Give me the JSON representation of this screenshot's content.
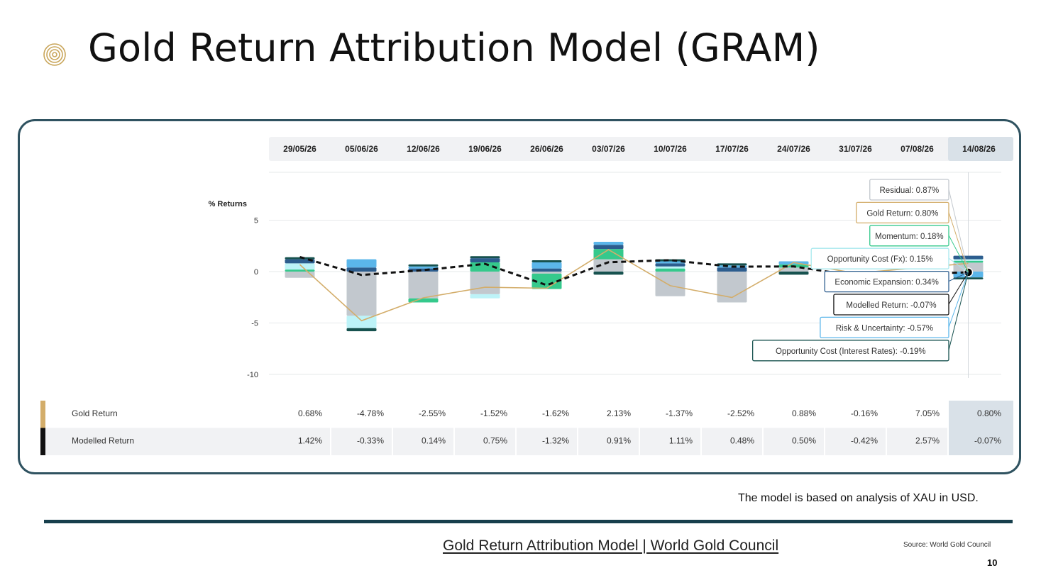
{
  "slide": {
    "title": "Gold Return Attribution Model (GRAM)",
    "note": "The model is based on analysis of XAU in USD.",
    "link_text": "Gold Return Attribution Model | World Gold Council",
    "source": "Source: World Gold Council",
    "page_number": "10",
    "colors": {
      "accent_gold": "#c9a65b",
      "dark_teal": "#173f4c",
      "panel_border": "#2f5260"
    },
    "icon": "concentric-circles-icon"
  },
  "chart_data": {
    "type": "bar",
    "stacked": true,
    "ylabel": "% Returns",
    "ylim": [
      -10,
      6
    ],
    "yticks": [
      5,
      0,
      -5,
      -10
    ],
    "grid": true,
    "categories": [
      "29/05/26",
      "05/06/26",
      "12/06/26",
      "19/06/26",
      "26/06/26",
      "03/07/26",
      "10/07/26",
      "17/07/26",
      "24/07/26",
      "31/07/26",
      "07/08/26",
      "14/08/26"
    ],
    "highlight_category": "14/08/26",
    "series": [
      {
        "name": "Residual",
        "type": "bar",
        "color": "#c2c8ce",
        "values": [
          -0.6,
          -4.3,
          -2.6,
          -2.2,
          -0.2,
          1.2,
          -2.4,
          -3.0,
          0.4,
          null,
          null,
          0.87
        ]
      },
      {
        "name": "Momentum",
        "type": "bar",
        "color": "#35c98c",
        "values": [
          0.2,
          0,
          -0.4,
          0.9,
          -1.5,
          1.0,
          0.3,
          0,
          0.3,
          null,
          null,
          0.18
        ]
      },
      {
        "name": "Opportunity Cost (Fx)",
        "type": "bar",
        "color": "#bdf3f8",
        "values": [
          0.6,
          -1.2,
          0,
          -0.4,
          0,
          0,
          0.2,
          0,
          0,
          null,
          null,
          0.15
        ]
      },
      {
        "name": "Economic Expansion",
        "type": "bar",
        "color": "#2c5d8e",
        "values": [
          0.4,
          0.4,
          0.3,
          0.4,
          0.3,
          0.4,
          0.3,
          0.4,
          0,
          null,
          null,
          0.34
        ]
      },
      {
        "name": "Risk & Uncertainty",
        "type": "bar",
        "color": "#5bb6ea",
        "values": [
          0,
          0.8,
          0.2,
          0,
          0.6,
          0.3,
          0.2,
          0.2,
          0.3,
          null,
          null,
          -0.57
        ]
      },
      {
        "name": "Opportunity Cost (Interest Rates)",
        "type": "bar",
        "color": "#17524f",
        "values": [
          0.2,
          -0.3,
          0.2,
          0.2,
          0.2,
          -0.3,
          0.2,
          0.2,
          -0.3,
          null,
          null,
          -0.19
        ]
      },
      {
        "name": "Gold Return",
        "type": "line",
        "color": "#d3ad6a",
        "values": [
          0.68,
          -4.78,
          -2.55,
          -1.52,
          -1.62,
          2.13,
          -1.37,
          -2.52,
          0.88,
          -0.16,
          7.05,
          0.8
        ]
      },
      {
        "name": "Modelled Return",
        "type": "line",
        "color": "#111111",
        "dashed": true,
        "values": [
          1.42,
          -0.33,
          0.14,
          0.75,
          -1.32,
          0.91,
          1.11,
          0.48,
          0.5,
          -0.42,
          2.57,
          -0.07
        ]
      }
    ],
    "tooltip": [
      {
        "label": "Residual: 0.87%",
        "color": "#c2c8ce"
      },
      {
        "label": "Gold Return: 0.80%",
        "color": "#d3ad6a"
      },
      {
        "label": "Momentum: 0.18%",
        "color": "#35c98c"
      },
      {
        "label": "Opportunity Cost (Fx): 0.15%",
        "color": "#a7e8ee"
      },
      {
        "label": "Economic Expansion: 0.34%",
        "color": "#2c5d8e"
      },
      {
        "label": "Modelled Return: -0.07%",
        "color": "#111111"
      },
      {
        "label": "Risk & Uncertainty: -0.57%",
        "color": "#5bb6ea"
      },
      {
        "label": "Opportunity Cost (Interest Rates): -0.19%",
        "color": "#17524f"
      }
    ],
    "table": {
      "rows": [
        {
          "name": "Gold Return",
          "color": "#d3ad6a",
          "values": [
            "0.68%",
            "-4.78%",
            "-2.55%",
            "-1.52%",
            "-1.62%",
            "2.13%",
            "-1.37%",
            "-2.52%",
            "0.88%",
            "-0.16%",
            "7.05%",
            "0.80%"
          ]
        },
        {
          "name": "Modelled Return",
          "color": "#111111",
          "values": [
            "1.42%",
            "-0.33%",
            "0.14%",
            "0.75%",
            "-1.32%",
            "0.91%",
            "1.11%",
            "0.48%",
            "0.50%",
            "-0.42%",
            "2.57%",
            "-0.07%"
          ]
        }
      ]
    }
  }
}
